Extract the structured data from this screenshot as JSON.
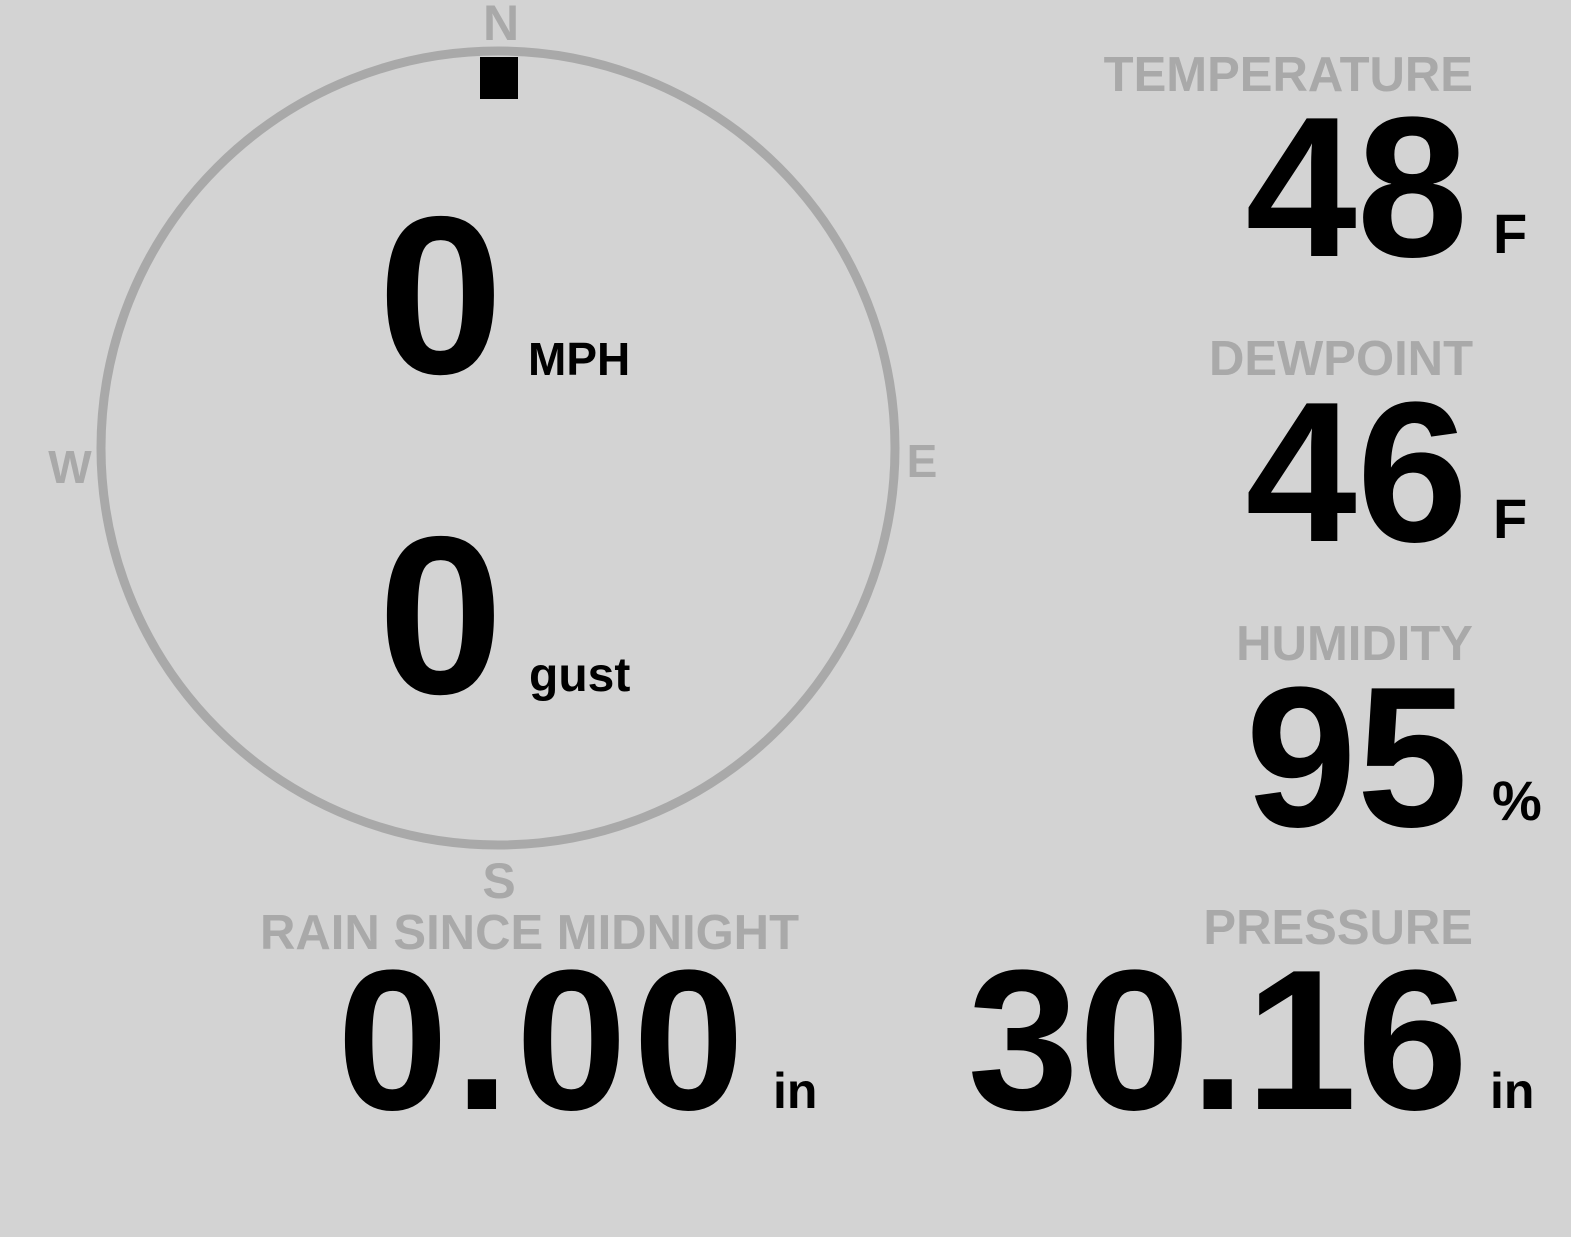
{
  "colors": {
    "background": "#d3d3d3",
    "label": "#a9a9a9",
    "value": "#000000",
    "ring": "#a9a9a9",
    "indicator": "#000000"
  },
  "compass": {
    "north": "N",
    "south": "S",
    "east": "E",
    "west": "W",
    "wind_direction_deg": 0
  },
  "wind": {
    "speed": "0",
    "speed_unit": "MPH",
    "gust": "0",
    "gust_unit": "gust"
  },
  "temperature": {
    "label": "TEMPERATURE",
    "value": "48",
    "unit": "F"
  },
  "dewpoint": {
    "label": "DEWPOINT",
    "value": "46",
    "unit": "F"
  },
  "humidity": {
    "label": "HUMIDITY",
    "value": "95",
    "unit": "%"
  },
  "pressure": {
    "label": "PRESSURE",
    "value": "30.16",
    "unit": "in"
  },
  "rain": {
    "label": "RAIN SINCE MIDNIGHT",
    "value": "0.00",
    "unit": "in"
  }
}
